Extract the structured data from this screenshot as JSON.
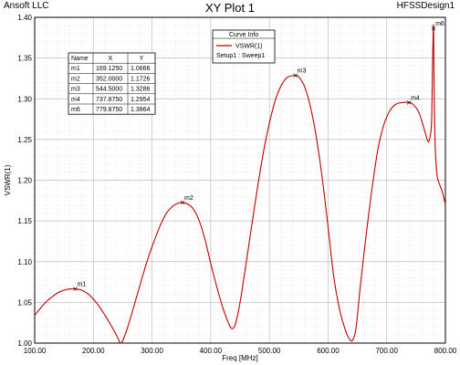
{
  "header": {
    "company": "Ansoft LLC",
    "title": "XY Plot 1",
    "design": "HFSSDesign1"
  },
  "legend": {
    "title": "Curve Info",
    "series_label": "VSWR(1)",
    "setup_label": "Setup1 : Sweep1"
  },
  "marker_table": {
    "headers": [
      "Name",
      "X",
      "Y"
    ],
    "rows": [
      [
        "m1",
        "169.1250",
        "1.0666"
      ],
      [
        "m2",
        "352.0000",
        "1.1726"
      ],
      [
        "m3",
        "544.5000",
        "1.3286"
      ],
      [
        "m4",
        "737.8750",
        "1.2954"
      ],
      [
        "m6",
        "779.8750",
        "1.3864"
      ]
    ]
  },
  "colors": {
    "curve": "#c00000",
    "grid": "#c8c8c8",
    "axis": "#000000"
  },
  "chart_data": {
    "type": "line",
    "xlabel": "Freq [MHz]",
    "ylabel": "VSWR(1)",
    "xlim": [
      100,
      800
    ],
    "ylim": [
      1.0,
      1.4
    ],
    "xticks": [
      "100.00",
      "200.00",
      "300.00",
      "400.00",
      "500.00",
      "600.00",
      "700.00",
      "800.00"
    ],
    "yticks": [
      "1.00",
      "1.05",
      "1.10",
      "1.15",
      "1.20",
      "1.25",
      "1.30",
      "1.35",
      "1.40"
    ],
    "grid": true,
    "series": [
      {
        "name": "VSWR(1)",
        "x": [
          100,
          110,
          120,
          130,
          140,
          150,
          160,
          169.125,
          180,
          190,
          200,
          210,
          220,
          230,
          240,
          247,
          255,
          265,
          275,
          285,
          295,
          305,
          315,
          325,
          335,
          345,
          352,
          360,
          370,
          380,
          390,
          400,
          410,
          420,
          430,
          436,
          442,
          450,
          460,
          470,
          480,
          490,
          500,
          510,
          520,
          530,
          540,
          544.5,
          550,
          560,
          570,
          580,
          590,
          600,
          610,
          620,
          630,
          638,
          643,
          648,
          655,
          665,
          675,
          685,
          695,
          705,
          715,
          725,
          737.875,
          745,
          755,
          765,
          770,
          773,
          776,
          777,
          778,
          779,
          779.875,
          781,
          783,
          786,
          790,
          795,
          800
        ],
        "y": [
          1.034,
          1.043,
          1.051,
          1.057,
          1.062,
          1.065,
          1.0665,
          1.0666,
          1.065,
          1.061,
          1.054,
          1.045,
          1.034,
          1.022,
          1.009,
          1.0,
          1.012,
          1.035,
          1.06,
          1.085,
          1.108,
          1.128,
          1.146,
          1.16,
          1.168,
          1.172,
          1.1726,
          1.171,
          1.165,
          1.151,
          1.128,
          1.098,
          1.07,
          1.045,
          1.025,
          1.018,
          1.023,
          1.05,
          1.096,
          1.145,
          1.192,
          1.235,
          1.27,
          1.298,
          1.316,
          1.326,
          1.3284,
          1.3286,
          1.327,
          1.315,
          1.29,
          1.253,
          1.203,
          1.143,
          1.08,
          1.04,
          1.015,
          1.0035,
          1.005,
          1.02,
          1.07,
          1.133,
          1.19,
          1.238,
          1.268,
          1.285,
          1.293,
          1.2953,
          1.2954,
          1.293,
          1.283,
          1.26,
          1.248,
          1.25,
          1.265,
          1.29,
          1.34,
          1.375,
          1.3864,
          1.3,
          1.235,
          1.205,
          1.195,
          1.185,
          1.17
        ]
      }
    ],
    "markers": [
      {
        "name": "m1",
        "x": 169.125,
        "y": 1.0666
      },
      {
        "name": "m2",
        "x": 352.0,
        "y": 1.1726
      },
      {
        "name": "m3",
        "x": 544.5,
        "y": 1.3286
      },
      {
        "name": "m4",
        "x": 737.875,
        "y": 1.2954
      },
      {
        "name": "m6",
        "x": 779.875,
        "y": 1.3864
      }
    ]
  }
}
